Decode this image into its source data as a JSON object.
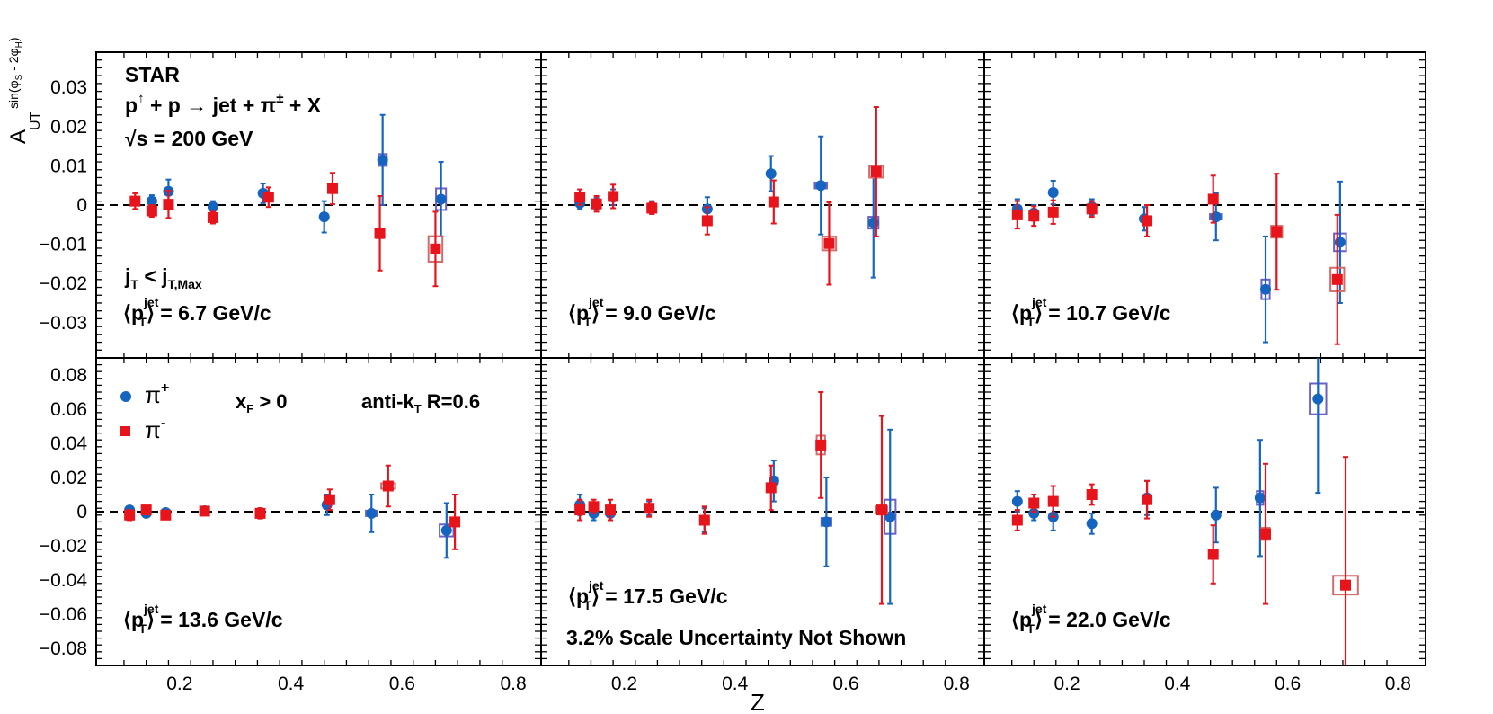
{
  "chart_data": {
    "type": "scatter",
    "xlabel": "Z",
    "ylabel_main": "A",
    "ylabel_sub": "UT",
    "ylabel_sup": "sin(φ",
    "ylabel_sup_s": "S",
    "ylabel_sup_mid": " - 2φ",
    "ylabel_sup_h": "H",
    "ylabel_sup_end": ")",
    "xlim": [
      0.05,
      0.85
    ],
    "xticks": [
      "0.2",
      "0.4",
      "0.6",
      "0.8"
    ],
    "rows": [
      {
        "ylim": [
          -0.039,
          0.039
        ],
        "yticks": [
          "0.03",
          "0.02",
          "0.01",
          "0",
          "−0.01",
          "−0.02",
          "−0.03"
        ]
      },
      {
        "ylim": [
          -0.09,
          0.09
        ],
        "yticks": [
          "0.08",
          "0.06",
          "0.04",
          "0.02",
          "0",
          "−0.02",
          "−0.04",
          "−0.06",
          "−0.08"
        ]
      }
    ],
    "colors": {
      "pi_plus": "#1565c0",
      "pi_minus": "#e8141c",
      "box_plus": "#6a60c8",
      "box_minus": "#d46a6a"
    },
    "legend": {
      "pi_plus": "π",
      "pi_plus_sup": "+",
      "pi_minus": "π",
      "pi_minus_sup": "-"
    },
    "labels": {
      "experiment": "STAR",
      "reaction": {
        "p1": "p",
        "arrow1": "↑",
        "rest1": " + p  → jet + π",
        "pm": "±",
        "rest2": " + X"
      },
      "energy": {
        "root": "√s = 200 GeV"
      },
      "jt": {
        "j": "j",
        "sub": "T",
        "mid": " < j",
        "sub2": "T,Max"
      },
      "xf": {
        "x": "x",
        "sub": "F",
        "rest": " > 0"
      },
      "antikt": {
        "a": "anti-k",
        "sub": "T",
        "rest": " R=0.6"
      },
      "scale_note": "3.2% Scale Uncertainty Not Shown",
      "pt_prefix": "⟨p",
      "pt_sup": "jet",
      "pt_sub": "T",
      "pt_close": "⟩"
    },
    "panels": [
      {
        "row": 0,
        "col": 0,
        "pt": " = 6.7 GeV/c",
        "pi_plus": [
          {
            "z": 0.15,
            "y": 0.001,
            "err": 0.0015,
            "sx": 0.01,
            "sy": 0.001
          },
          {
            "z": 0.18,
            "y": 0.0035,
            "err": 0.003,
            "sx": 0.01,
            "sy": 0.001
          },
          {
            "z": 0.26,
            "y": -0.0005,
            "err": 0.0015,
            "sx": 0.01,
            "sy": 0.001
          },
          {
            "z": 0.35,
            "y": 0.003,
            "err": 0.0025,
            "sx": 0.01,
            "sy": 0.001
          },
          {
            "z": 0.46,
            "y": -0.003,
            "err": 0.004,
            "sx": 0.012,
            "sy": 0.001
          },
          {
            "z": 0.565,
            "y": 0.0115,
            "err": 0.0115,
            "sx": 0.015,
            "sy": 0.003
          },
          {
            "z": 0.67,
            "y": 0.0015,
            "err": 0.0095,
            "sx": 0.018,
            "sy": 0.0055
          }
        ],
        "pi_minus": [
          {
            "z": 0.12,
            "y": 0.001,
            "err": 0.002,
            "sx": 0.008,
            "sy": 0.001
          },
          {
            "z": 0.15,
            "y": -0.0015,
            "err": 0.0015,
            "sx": 0.008,
            "sy": 0.001
          },
          {
            "z": 0.18,
            "y": 0.0002,
            "err": 0.0035,
            "sx": 0.008,
            "sy": 0.001
          },
          {
            "z": 0.26,
            "y": -0.0032,
            "err": 0.0015,
            "sx": 0.008,
            "sy": 0.001
          },
          {
            "z": 0.36,
            "y": 0.002,
            "err": 0.0025,
            "sx": 0.008,
            "sy": 0.001
          },
          {
            "z": 0.475,
            "y": 0.0042,
            "err": 0.004,
            "sx": 0.012,
            "sy": 0.001
          },
          {
            "z": 0.56,
            "y": -0.0072,
            "err": 0.0095,
            "sx": 0.013,
            "sy": 0.0025
          },
          {
            "z": 0.66,
            "y": -0.0112,
            "err": 0.0095,
            "sx": 0.025,
            "sy": 0.0065
          }
        ]
      },
      {
        "row": 0,
        "col": 1,
        "pt": " = 9.0 GeV/c",
        "pi_plus": [
          {
            "z": 0.12,
            "y": 0.0005,
            "err": 0.0015,
            "sx": 0.008,
            "sy": 0.001
          },
          {
            "z": 0.15,
            "y": 0.0003,
            "err": 0.0015,
            "sx": 0.008,
            "sy": 0.001
          },
          {
            "z": 0.18,
            "y": 0.002,
            "err": 0.002,
            "sx": 0.008,
            "sy": 0.001
          },
          {
            "z": 0.25,
            "y": -0.0005,
            "err": 0.0015,
            "sx": 0.01,
            "sy": 0.001
          },
          {
            "z": 0.35,
            "y": -0.001,
            "err": 0.003,
            "sx": 0.01,
            "sy": 0.001
          },
          {
            "z": 0.465,
            "y": 0.008,
            "err": 0.0045,
            "sx": 0.012,
            "sy": 0.0012
          },
          {
            "z": 0.555,
            "y": 0.005,
            "err": 0.0125,
            "sx": 0.022,
            "sy": 0.0015
          },
          {
            "z": 0.65,
            "y": -0.0045,
            "err": 0.014,
            "sx": 0.018,
            "sy": 0.003
          }
        ],
        "pi_minus": [
          {
            "z": 0.12,
            "y": 0.002,
            "err": 0.002,
            "sx": 0.008,
            "sy": 0.001
          },
          {
            "z": 0.15,
            "y": 0.0003,
            "err": 0.002,
            "sx": 0.008,
            "sy": 0.001
          },
          {
            "z": 0.18,
            "y": 0.0022,
            "err": 0.003,
            "sx": 0.008,
            "sy": 0.001
          },
          {
            "z": 0.25,
            "y": -0.0008,
            "err": 0.0015,
            "sx": 0.008,
            "sy": 0.001
          },
          {
            "z": 0.35,
            "y": -0.004,
            "err": 0.0035,
            "sx": 0.01,
            "sy": 0.001
          },
          {
            "z": 0.47,
            "y": 0.0008,
            "err": 0.0055,
            "sx": 0.01,
            "sy": 0.001
          },
          {
            "z": 0.57,
            "y": -0.0098,
            "err": 0.0105,
            "sx": 0.025,
            "sy": 0.0035
          },
          {
            "z": 0.655,
            "y": 0.0085,
            "err": 0.0165,
            "sx": 0.025,
            "sy": 0.003
          }
        ]
      },
      {
        "row": 0,
        "col": 2,
        "pt": " = 10.7 GeV/c",
        "pi_plus": [
          {
            "z": 0.11,
            "y": -0.001,
            "err": 0.0025,
            "sx": 0.006,
            "sy": 0.001
          },
          {
            "z": 0.14,
            "y": -0.002,
            "err": 0.002,
            "sx": 0.006,
            "sy": 0.001
          },
          {
            "z": 0.175,
            "y": 0.0032,
            "err": 0.003,
            "sx": 0.006,
            "sy": 0.001
          },
          {
            "z": 0.245,
            "y": -0.0005,
            "err": 0.002,
            "sx": 0.008,
            "sy": 0.001
          },
          {
            "z": 0.34,
            "y": -0.0035,
            "err": 0.003,
            "sx": 0.01,
            "sy": 0.001
          },
          {
            "z": 0.47,
            "y": -0.003,
            "err": 0.006,
            "sx": 0.022,
            "sy": 0.001
          },
          {
            "z": 0.56,
            "y": -0.0215,
            "err": 0.0135,
            "sx": 0.015,
            "sy": 0.005
          },
          {
            "z": 0.695,
            "y": -0.0095,
            "err": 0.0155,
            "sx": 0.022,
            "sy": 0.0045
          }
        ],
        "pi_minus": [
          {
            "z": 0.11,
            "y": -0.0025,
            "err": 0.0035,
            "sx": 0.006,
            "sy": 0.001
          },
          {
            "z": 0.14,
            "y": -0.0028,
            "err": 0.0025,
            "sx": 0.006,
            "sy": 0.001
          },
          {
            "z": 0.175,
            "y": -0.0018,
            "err": 0.003,
            "sx": 0.006,
            "sy": 0.001
          },
          {
            "z": 0.245,
            "y": -0.001,
            "err": 0.002,
            "sx": 0.008,
            "sy": 0.001
          },
          {
            "z": 0.345,
            "y": -0.004,
            "err": 0.004,
            "sx": 0.01,
            "sy": 0.001
          },
          {
            "z": 0.465,
            "y": 0.0015,
            "err": 0.006,
            "sx": 0.015,
            "sy": 0.001
          },
          {
            "z": 0.58,
            "y": -0.0068,
            "err": 0.0148,
            "sx": 0.02,
            "sy": 0.003
          },
          {
            "z": 0.69,
            "y": -0.019,
            "err": 0.0165,
            "sx": 0.025,
            "sy": 0.006
          }
        ]
      },
      {
        "row": 1,
        "col": 0,
        "pt": " = 13.6 GeV/c",
        "pi_plus": [
          {
            "z": 0.11,
            "y": 0.001,
            "err": 0.002,
            "sx": 0.006,
            "sy": 0.001
          },
          {
            "z": 0.14,
            "y": -0.001,
            "err": 0.002,
            "sx": 0.006,
            "sy": 0.001
          },
          {
            "z": 0.175,
            "y": -0.0005,
            "err": 0.002,
            "sx": 0.006,
            "sy": 0.001
          },
          {
            "z": 0.245,
            "y": 0.0005,
            "err": 0.002,
            "sx": 0.006,
            "sy": 0.001
          },
          {
            "z": 0.345,
            "y": -0.001,
            "err": 0.003,
            "sx": 0.01,
            "sy": 0.002
          },
          {
            "z": 0.465,
            "y": 0.004,
            "err": 0.006,
            "sx": 0.012,
            "sy": 0.002
          },
          {
            "z": 0.545,
            "y": -0.001,
            "err": 0.011,
            "sx": 0.02,
            "sy": 0.003
          },
          {
            "z": 0.68,
            "y": -0.011,
            "err": 0.016,
            "sx": 0.025,
            "sy": 0.007
          }
        ],
        "pi_minus": [
          {
            "z": 0.11,
            "y": -0.002,
            "err": 0.003,
            "sx": 0.006,
            "sy": 0.002
          },
          {
            "z": 0.14,
            "y": 0.001,
            "err": 0.002,
            "sx": 0.006,
            "sy": 0.001
          },
          {
            "z": 0.175,
            "y": -0.002,
            "err": 0.002,
            "sx": 0.006,
            "sy": 0.001
          },
          {
            "z": 0.245,
            "y": 0.0003,
            "err": 0.002,
            "sx": 0.006,
            "sy": 0.001
          },
          {
            "z": 0.345,
            "y": -0.001,
            "err": 0.003,
            "sx": 0.006,
            "sy": 0.002
          },
          {
            "z": 0.47,
            "y": 0.007,
            "err": 0.006,
            "sx": 0.012,
            "sy": 0.002
          },
          {
            "z": 0.575,
            "y": 0.015,
            "err": 0.012,
            "sx": 0.025,
            "sy": 0.003
          },
          {
            "z": 0.695,
            "y": -0.006,
            "err": 0.016,
            "sx": 0.015,
            "sy": 0.003
          }
        ]
      },
      {
        "row": 1,
        "col": 1,
        "pt": " = 17.5 GeV/c",
        "pi_plus": [
          {
            "z": 0.12,
            "y": 0.004,
            "err": 0.006,
            "sx": 0.006,
            "sy": 0.002
          },
          {
            "z": 0.145,
            "y": -0.001,
            "err": 0.004,
            "sx": 0.006,
            "sy": 0.002
          },
          {
            "z": 0.175,
            "y": -0.001,
            "err": 0.004,
            "sx": 0.006,
            "sy": 0.002
          },
          {
            "z": 0.245,
            "y": 0.002,
            "err": 0.004,
            "sx": 0.006,
            "sy": 0.002
          },
          {
            "z": 0.345,
            "y": -0.005,
            "err": 0.007,
            "sx": 0.006,
            "sy": 0.002
          },
          {
            "z": 0.47,
            "y": 0.018,
            "err": 0.012,
            "sx": 0.015,
            "sy": 0.003
          },
          {
            "z": 0.565,
            "y": -0.006,
            "err": 0.026,
            "sx": 0.018,
            "sy": 0.0045
          },
          {
            "z": 0.68,
            "y": -0.003,
            "err": 0.051,
            "sx": 0.02,
            "sy": 0.02
          }
        ],
        "pi_minus": [
          {
            "z": 0.12,
            "y": 0.001,
            "err": 0.006,
            "sx": 0.006,
            "sy": 0.002
          },
          {
            "z": 0.145,
            "y": 0.003,
            "err": 0.004,
            "sx": 0.006,
            "sy": 0.002
          },
          {
            "z": 0.175,
            "y": 0.001,
            "err": 0.006,
            "sx": 0.006,
            "sy": 0.002
          },
          {
            "z": 0.245,
            "y": 0.002,
            "err": 0.005,
            "sx": 0.006,
            "sy": 0.002
          },
          {
            "z": 0.345,
            "y": -0.005,
            "err": 0.008,
            "sx": 0.006,
            "sy": 0.002
          },
          {
            "z": 0.465,
            "y": 0.014,
            "err": 0.013,
            "sx": 0.012,
            "sy": 0.003
          },
          {
            "z": 0.555,
            "y": 0.039,
            "err": 0.031,
            "sx": 0.015,
            "sy": 0.011
          },
          {
            "z": 0.665,
            "y": 0.001,
            "err": 0.055,
            "sx": 0.02,
            "sy": 0.004
          }
        ]
      },
      {
        "row": 1,
        "col": 2,
        "pt": " = 22.0 GeV/c",
        "pi_plus": [
          {
            "z": 0.11,
            "y": 0.006,
            "err": 0.006,
            "sx": 0.006,
            "sy": 0.002
          },
          {
            "z": 0.14,
            "y": -0.001,
            "err": 0.004,
            "sx": 0.006,
            "sy": 0.002
          },
          {
            "z": 0.175,
            "y": -0.003,
            "err": 0.008,
            "sx": 0.006,
            "sy": 0.002
          },
          {
            "z": 0.245,
            "y": -0.007,
            "err": 0.006,
            "sx": 0.006,
            "sy": 0.002
          },
          {
            "z": 0.345,
            "y": 0.008,
            "err": 0.01,
            "sx": 0.006,
            "sy": 0.002
          },
          {
            "z": 0.47,
            "y": -0.002,
            "err": 0.016,
            "sx": 0.012,
            "sy": 0.003
          },
          {
            "z": 0.55,
            "y": 0.008,
            "err": 0.034,
            "sx": 0.012,
            "sy": 0.008
          },
          {
            "z": 0.655,
            "y": 0.066,
            "err": 0.055,
            "sx": 0.03,
            "sy": 0.018
          }
        ],
        "pi_minus": [
          {
            "z": 0.11,
            "y": -0.005,
            "err": 0.006,
            "sx": 0.006,
            "sy": 0.002
          },
          {
            "z": 0.14,
            "y": 0.005,
            "err": 0.005,
            "sx": 0.006,
            "sy": 0.002
          },
          {
            "z": 0.175,
            "y": 0.006,
            "err": 0.009,
            "sx": 0.006,
            "sy": 0.002
          },
          {
            "z": 0.245,
            "y": 0.01,
            "err": 0.006,
            "sx": 0.006,
            "sy": 0.002
          },
          {
            "z": 0.345,
            "y": 0.007,
            "err": 0.011,
            "sx": 0.006,
            "sy": 0.002
          },
          {
            "z": 0.465,
            "y": -0.025,
            "err": 0.017,
            "sx": 0.012,
            "sy": 0.002
          },
          {
            "z": 0.56,
            "y": -0.013,
            "err": 0.041,
            "sx": 0.015,
            "sy": 0.007
          },
          {
            "z": 0.705,
            "y": -0.043,
            "err": 0.075,
            "sx": 0.045,
            "sy": 0.011
          }
        ]
      }
    ]
  }
}
